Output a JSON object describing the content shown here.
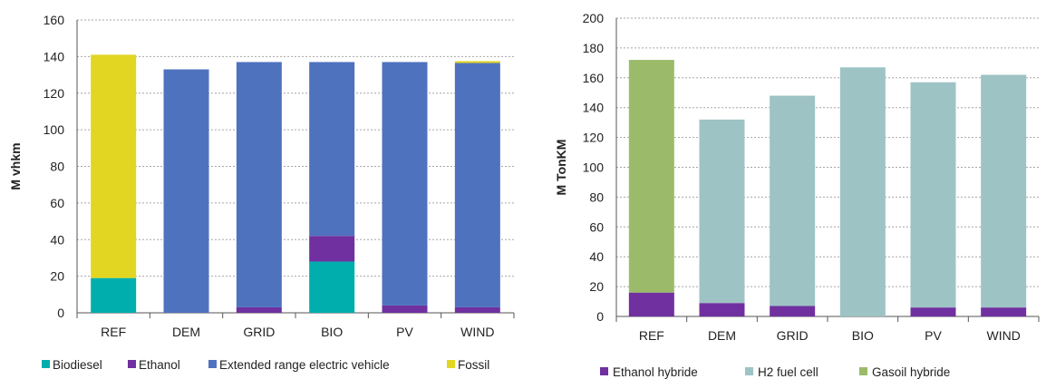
{
  "chart_data": [
    {
      "type": "bar",
      "stacked": true,
      "categories": [
        "REF",
        "DEM",
        "GRID",
        "BIO",
        "PV",
        "WIND"
      ],
      "ylabel": "M vhkm",
      "ylim": [
        0,
        160
      ],
      "yticks": [
        0,
        20,
        40,
        60,
        80,
        100,
        120,
        140,
        160
      ],
      "grid": true,
      "legend_position": "bottom",
      "series": [
        {
          "name": "Biodiesel",
          "color": "#00AEAE",
          "values": [
            19,
            0,
            0,
            28,
            0,
            0
          ]
        },
        {
          "name": "Ethanol",
          "color": "#7030A0",
          "values": [
            0,
            0,
            3,
            14,
            4,
            3
          ]
        },
        {
          "name": "Extended range electric vehicle",
          "color": "#4F72BE",
          "values": [
            0,
            133,
            134,
            95,
            133,
            133.5
          ]
        },
        {
          "name": "Fossil",
          "color": "#E2D622",
          "values": [
            122,
            0,
            0,
            0,
            0,
            1
          ]
        }
      ]
    },
    {
      "type": "bar",
      "stacked": true,
      "categories": [
        "REF",
        "DEM",
        "GRID",
        "BIO",
        "PV",
        "WIND"
      ],
      "ylabel": "M TonKM",
      "ylim": [
        0,
        200
      ],
      "yticks": [
        0,
        20,
        40,
        60,
        80,
        100,
        120,
        140,
        160,
        180,
        200
      ],
      "grid": true,
      "legend_position": "bottom",
      "series": [
        {
          "name": "Ethanol hybride",
          "color": "#7030A0",
          "values": [
            16,
            9,
            7,
            0,
            6,
            6
          ]
        },
        {
          "name": "H2 fuel cell",
          "color": "#9DC3C5",
          "values": [
            0,
            123,
            141,
            167,
            151,
            156
          ]
        },
        {
          "name": "Gasoil hybride",
          "color": "#9BBB6A",
          "values": [
            156,
            0,
            0,
            0,
            0,
            0
          ]
        }
      ]
    }
  ]
}
